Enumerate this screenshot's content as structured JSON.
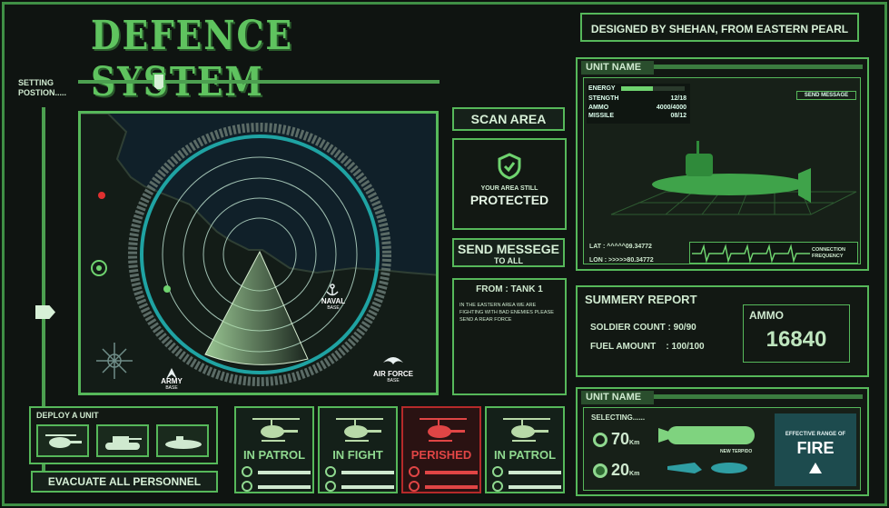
{
  "header": {
    "title": "DEFENCE SYSTEM",
    "credit": "DESIGNED BY SHEHAN, FROM EASTERN PEARL"
  },
  "left": {
    "setting_label_1": "SETTING",
    "setting_label_2": "POSTION....."
  },
  "radar": {
    "bases": {
      "naval": "NAVAL",
      "naval_sub": "BASE",
      "army": "ARMY",
      "army_sub": "BASE",
      "air": "AIR FORCE",
      "air_sub": "BASE"
    }
  },
  "controls": {
    "scan": "SCAN AREA",
    "status_1": "YOUR AREA STILL",
    "status_2": "PROTECTED",
    "send": "SEND MESSEGE",
    "send_sub": "TO ALL",
    "msg_from": "FROM : TANK 1",
    "msg_body": "IN THE EASTERN AREA WE ARE FIGHTING WITH BAD ENEMIES PLEASE SEND A REAR FORCE"
  },
  "unit1": {
    "label": "UNIT NAME",
    "energy_label": "ENERGY",
    "strength_label": "STENGTH",
    "strength": "12/18",
    "ammo_label": "AMMO",
    "ammo": "4000/4000",
    "missile_label": "MISSILE",
    "missile": "08/12",
    "send_btn": "SEND MESSAGE",
    "lat": "LAT : ^^^^^09.34772",
    "lon": "LON : >>>>>80.34772",
    "conn": "CONNECTION",
    "freq": "FREQUENCY"
  },
  "summary": {
    "title": "SUMMERY REPORT",
    "soldier": "SOLDIER COUNT : 90/90",
    "fuel": "FUEL AMOUNT    : 100/100",
    "ammo_label": "AMMO",
    "ammo_value": "16840"
  },
  "unit2": {
    "label": "UNIT NAME",
    "selecting": "SELECTING......",
    "range1": "70",
    "range2": "20",
    "unit": "Km",
    "torpedo": "NEW TERPIDO",
    "fire_label": "EFFECTIVE RANGE OF",
    "fire": "FIRE"
  },
  "deploy": {
    "label": "DEPLOY A UNIT",
    "evacuate": "EVACUATE ALL PERSONNEL"
  },
  "units": [
    {
      "status": "IN PATROL",
      "alert": false
    },
    {
      "status": "IN FIGHT",
      "alert": false
    },
    {
      "status": "PERISHED",
      "alert": true
    },
    {
      "status": "IN PATROL",
      "alert": false
    }
  ],
  "colors": {
    "accent": "#56b85a",
    "alert": "#b52a2a",
    "bg": "#0f1411"
  }
}
